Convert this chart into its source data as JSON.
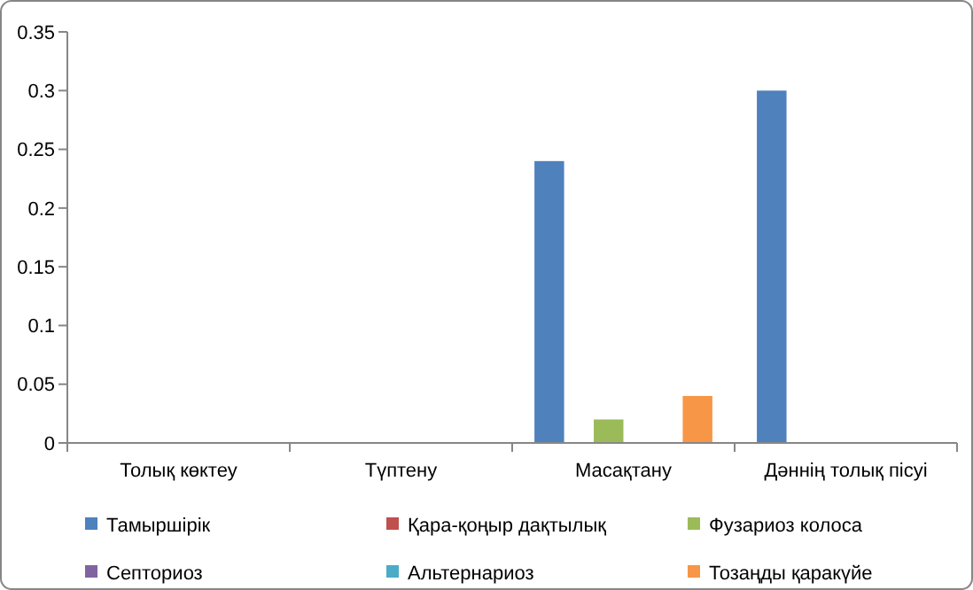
{
  "chart_data": {
    "type": "bar",
    "categories": [
      "Толық көктеу",
      "Түптену",
      "Масақтану",
      "Дәннің толық пісуі"
    ],
    "series": [
      {
        "name": "Тамыршірік",
        "color": "#4f81bd",
        "values": [
          0,
          0,
          0.24,
          0.3
        ]
      },
      {
        "name": "Қара-қоңыр дақтылық",
        "color": "#c0504d",
        "values": [
          0,
          0,
          0,
          0
        ]
      },
      {
        "name": "Фузариоз колоса",
        "color": "#9bbb59",
        "values": [
          0,
          0,
          0.02,
          0
        ]
      },
      {
        "name": "Септориоз",
        "color": "#8064a2",
        "values": [
          0,
          0,
          0,
          0
        ]
      },
      {
        "name": "Альтернариоз",
        "color": "#4bacc6",
        "values": [
          0,
          0,
          0,
          0
        ]
      },
      {
        "name": "Тозаңды қаракүйе",
        "color": "#f79646",
        "values": [
          0,
          0,
          0.04,
          0
        ]
      }
    ],
    "ylim": [
      0,
      0.35
    ],
    "yticks": [
      0,
      0.05,
      0.1,
      0.15,
      0.2,
      0.25,
      0.3,
      0.35
    ],
    "grid": false,
    "legend": "bottom"
  }
}
